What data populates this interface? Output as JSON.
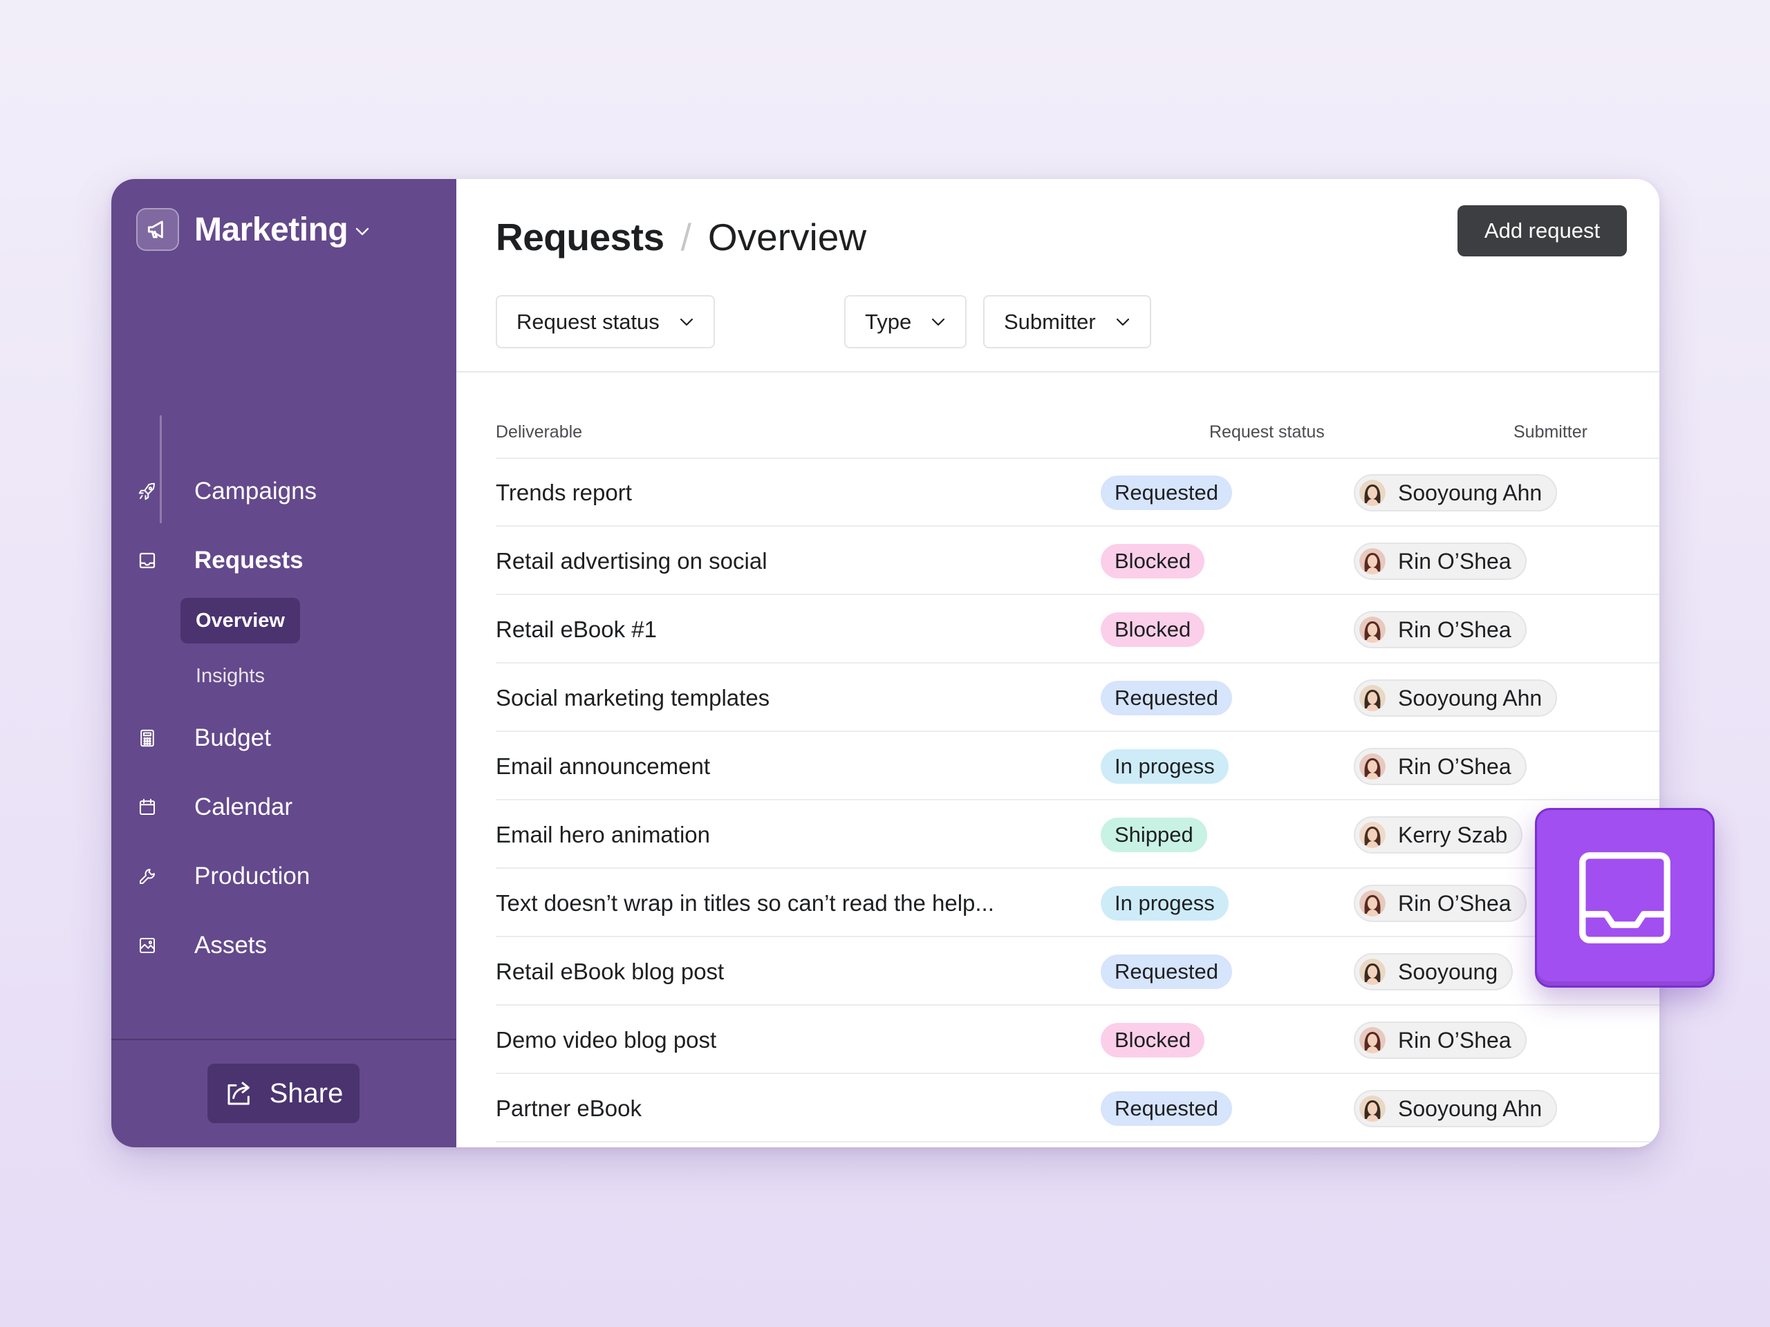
{
  "sidebar": {
    "workspace_title": "Marketing",
    "nav": [
      {
        "label": "Campaigns",
        "icon": "rocket-icon"
      },
      {
        "label": "Requests",
        "icon": "inbox-icon"
      },
      {
        "label": "Budget",
        "icon": "calculator-icon"
      },
      {
        "label": "Calendar",
        "icon": "calendar-icon"
      },
      {
        "label": "Production",
        "icon": "wrench-icon"
      },
      {
        "label": "Assets",
        "icon": "image-icon"
      }
    ],
    "sub_nav": [
      {
        "label": "Overview",
        "active": true
      },
      {
        "label": "Insights",
        "active": false
      }
    ],
    "share_label": "Share"
  },
  "header": {
    "title": "Requests",
    "separator": "/",
    "subtitle": "Overview",
    "add_button": "Add request"
  },
  "filters": [
    {
      "label": "Request status"
    },
    {
      "label": "Type"
    },
    {
      "label": "Submitter"
    }
  ],
  "table": {
    "columns": [
      "Deliverable",
      "Request status",
      "Submitter"
    ],
    "rows": [
      {
        "deliverable": "Trends report",
        "status": "Requested",
        "submitter": "Sooyoung Ahn"
      },
      {
        "deliverable": "Retail advertising on social",
        "status": "Blocked",
        "submitter": "Rin O’Shea"
      },
      {
        "deliverable": "Retail eBook #1",
        "status": "Blocked",
        "submitter": "Rin O’Shea"
      },
      {
        "deliverable": "Social marketing templates",
        "status": "Requested",
        "submitter": "Sooyoung Ahn"
      },
      {
        "deliverable": "Email announcement",
        "status": "In progess",
        "submitter": "Rin O’Shea"
      },
      {
        "deliverable": "Email hero animation",
        "status": "Shipped",
        "submitter": "Kerry Szab"
      },
      {
        "deliverable": "Text doesn’t wrap in titles so can’t read the help...",
        "status": "In progess",
        "submitter": "Rin O’Shea"
      },
      {
        "deliverable": "Retail eBook blog post",
        "status": "Requested",
        "submitter": "Sooyoung"
      },
      {
        "deliverable": "Demo video blog post",
        "status": "Blocked",
        "submitter": "Rin O’Shea"
      },
      {
        "deliverable": "Partner eBook",
        "status": "Requested",
        "submitter": "Sooyoung Ahn"
      }
    ]
  },
  "status_colors": {
    "Requested": "#d6e4fc",
    "Blocked": "#fbcfe9",
    "In progess": "#cdecf8",
    "Shipped": "#c8f2e4"
  },
  "colors": {
    "sidebar": "#64498c",
    "sidebar_active": "#4b3370",
    "badge": "#a14ff0"
  }
}
